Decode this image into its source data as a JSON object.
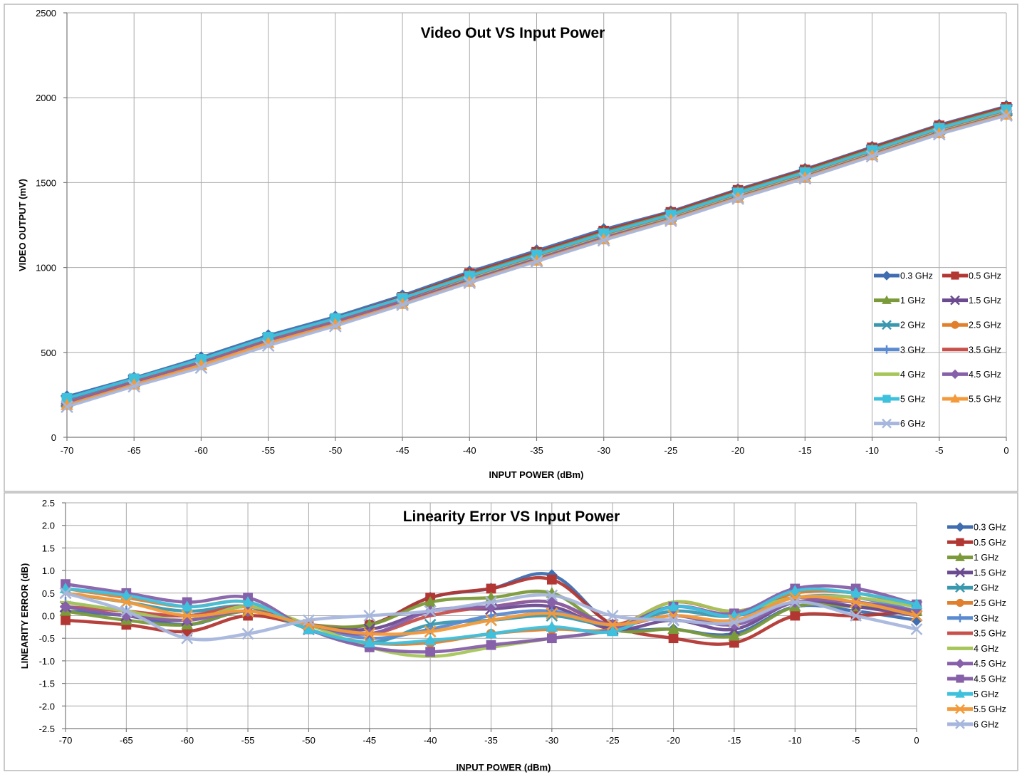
{
  "colors": {
    "0.3 GHz": "#3f6db0",
    "0.5 GHz": "#b23733",
    "1 GHz": "#7b9a3a",
    "1.5 GHz": "#6b4a8f",
    "2 GHz": "#3a98ae",
    "2.5 GHz": "#e07f2c",
    "3 GHz": "#5a8ad0",
    "3.5 GHz": "#c8504b",
    "4 GHz": "#a6c65a",
    "4.5 GHz": "#8660a8",
    "5 GHz": "#3fc0dc",
    "5.5 GHz": "#f39a3a",
    "6 GHz": "#a6b6dc"
  },
  "chart_data": [
    {
      "type": "line",
      "title": "Video Out VS Input Power",
      "xlabel": "INPUT POWER (dBm)",
      "ylabel": "VIDEO OUTPUT (mV)",
      "xlim": [
        -70,
        0
      ],
      "ylim": [
        0,
        2500
      ],
      "x_ticks": [
        "-70",
        "-65",
        "-60",
        "-55",
        "-50",
        "-45",
        "-40",
        "-35",
        "-30",
        "-25",
        "-20",
        "-15",
        "-10",
        "-5",
        "0"
      ],
      "y_ticks": [
        "0",
        "500",
        "1000",
        "1500",
        "2000",
        "2500"
      ],
      "grid": true,
      "legend_position": "right, two columns",
      "x": [
        -70,
        -65,
        -60,
        -55,
        -50,
        -45,
        -40,
        -35,
        -30,
        -25,
        -20,
        -15,
        -10,
        -5,
        0
      ],
      "series": [
        {
          "name": "0.3 GHz",
          "marker": "diamond",
          "values": [
            240,
            350,
            470,
            600,
            710,
            835,
            975,
            1100,
            1225,
            1330,
            1460,
            1580,
            1710,
            1840,
            1950
          ]
        },
        {
          "name": "0.5 GHz",
          "marker": "square",
          "values": [
            225,
            345,
            460,
            590,
            700,
            825,
            965,
            1090,
            1215,
            1325,
            1455,
            1575,
            1705,
            1835,
            1945
          ]
        },
        {
          "name": "1 GHz",
          "marker": "triangle",
          "values": [
            220,
            340,
            455,
            585,
            695,
            820,
            955,
            1080,
            1205,
            1315,
            1445,
            1565,
            1695,
            1825,
            1935
          ]
        },
        {
          "name": "1.5 GHz",
          "marker": "x",
          "values": [
            215,
            335,
            450,
            580,
            690,
            815,
            950,
            1075,
            1200,
            1310,
            1440,
            1560,
            1690,
            1820,
            1930
          ]
        },
        {
          "name": "2 GHz",
          "marker": "x",
          "values": [
            210,
            330,
            450,
            580,
            690,
            810,
            945,
            1070,
            1195,
            1305,
            1435,
            1555,
            1685,
            1815,
            1925
          ]
        },
        {
          "name": "2.5 GHz",
          "marker": "circle",
          "values": [
            205,
            325,
            440,
            570,
            680,
            805,
            940,
            1065,
            1190,
            1300,
            1430,
            1555,
            1685,
            1815,
            1930
          ]
        },
        {
          "name": "3 GHz",
          "marker": "plus",
          "values": [
            210,
            330,
            445,
            575,
            685,
            805,
            940,
            1065,
            1190,
            1300,
            1430,
            1550,
            1680,
            1810,
            1920
          ]
        },
        {
          "name": "3.5 GHz",
          "marker": "dash",
          "values": [
            205,
            325,
            440,
            570,
            680,
            800,
            935,
            1060,
            1185,
            1295,
            1425,
            1545,
            1675,
            1805,
            1915
          ]
        },
        {
          "name": "4 GHz",
          "marker": "dash",
          "values": [
            200,
            320,
            435,
            565,
            675,
            795,
            930,
            1055,
            1180,
            1290,
            1420,
            1540,
            1670,
            1800,
            1910
          ]
        },
        {
          "name": "4.5 GHz",
          "marker": "diamond",
          "values": [
            200,
            320,
            435,
            565,
            675,
            795,
            925,
            1050,
            1175,
            1285,
            1415,
            1535,
            1665,
            1795,
            1905
          ]
        },
        {
          "name": "5 GHz",
          "marker": "square",
          "values": [
            230,
            345,
            460,
            590,
            700,
            820,
            950,
            1075,
            1200,
            1310,
            1440,
            1560,
            1690,
            1820,
            1930
          ]
        },
        {
          "name": "5.5 GHz",
          "marker": "triangle",
          "values": [
            190,
            310,
            425,
            555,
            665,
            785,
            915,
            1040,
            1165,
            1280,
            1410,
            1530,
            1660,
            1790,
            1900
          ]
        },
        {
          "name": "6 GHz",
          "marker": "x",
          "values": [
            180,
            300,
            410,
            540,
            655,
            780,
            910,
            1035,
            1160,
            1275,
            1405,
            1525,
            1655,
            1785,
            1895
          ]
        }
      ]
    },
    {
      "type": "line",
      "title": "Linearity Error VS Input Power",
      "xlabel": "INPUT POWER (dBm)",
      "ylabel": "LINEARITY ERROR (dB)",
      "xlim": [
        -70,
        0
      ],
      "ylim": [
        -2.5,
        2.5
      ],
      "x_ticks": [
        "-70",
        "-65",
        "-60",
        "-55",
        "-50",
        "-45",
        "-40",
        "-35",
        "-30",
        "-25",
        "-20",
        "-15",
        "-10",
        "-5",
        "0"
      ],
      "y_ticks": [
        "-2.5",
        "-2.0",
        "-1.5",
        "-1.0",
        "-0.5",
        "0.0",
        "0.5",
        "1.0",
        "1.5",
        "2.0",
        "2.5"
      ],
      "grid": true,
      "legend_position": "right",
      "x": [
        -70,
        -65,
        -60,
        -55,
        -50,
        -45,
        -40,
        -35,
        -30,
        -25,
        -20,
        -15,
        -10,
        -5,
        0
      ],
      "series": [
        {
          "name": "0.3 GHz",
          "marker": "diamond",
          "values": [
            0.1,
            0.0,
            -0.2,
            0.1,
            -0.2,
            -0.2,
            0.4,
            0.6,
            0.9,
            -0.2,
            -0.3,
            -0.4,
            0.2,
            0.1,
            -0.1
          ]
        },
        {
          "name": "0.5 GHz",
          "marker": "square",
          "values": [
            -0.1,
            -0.2,
            -0.35,
            0.0,
            -0.2,
            -0.2,
            0.4,
            0.6,
            0.8,
            -0.2,
            -0.5,
            -0.6,
            0.0,
            0.0,
            0.1
          ]
        },
        {
          "name": "1 GHz",
          "marker": "triangle",
          "values": [
            0.1,
            -0.1,
            -0.2,
            0.1,
            -0.2,
            -0.2,
            0.3,
            0.4,
            0.5,
            -0.3,
            -0.3,
            -0.45,
            0.2,
            0.2,
            0.1
          ]
        },
        {
          "name": "1.5 GHz",
          "marker": "x",
          "values": [
            0.2,
            0.0,
            -0.1,
            0.2,
            -0.2,
            -0.3,
            0.1,
            0.15,
            0.2,
            -0.3,
            -0.1,
            -0.3,
            0.3,
            0.2,
            0.0
          ]
        },
        {
          "name": "2 GHz",
          "marker": "x",
          "values": [
            0.5,
            0.3,
            0.1,
            0.2,
            -0.3,
            -0.6,
            -0.2,
            -0.1,
            0.0,
            -0.2,
            0.1,
            0.0,
            0.5,
            0.5,
            0.2
          ]
        },
        {
          "name": "2.5 GHz",
          "marker": "circle",
          "values": [
            0.6,
            0.4,
            0.2,
            0.3,
            -0.3,
            -0.6,
            -0.6,
            -0.4,
            -0.3,
            -0.3,
            0.2,
            0.0,
            0.5,
            0.5,
            0.2
          ]
        },
        {
          "name": "3 GHz",
          "marker": "plus",
          "values": [
            0.3,
            0.1,
            0.0,
            0.2,
            -0.2,
            -0.5,
            -0.3,
            0.0,
            0.1,
            -0.2,
            0.2,
            0.0,
            0.4,
            0.4,
            0.1
          ]
        },
        {
          "name": "3.5 GHz",
          "marker": "dash",
          "values": [
            0.2,
            0.1,
            0.0,
            0.2,
            -0.2,
            -0.4,
            0.0,
            0.2,
            0.3,
            -0.2,
            0.3,
            0.1,
            0.4,
            0.3,
            0.1
          ]
        },
        {
          "name": "4 GHz",
          "marker": "dash",
          "values": [
            0.3,
            0.1,
            -0.1,
            0.2,
            -0.2,
            -0.7,
            -0.9,
            -0.7,
            -0.5,
            -0.3,
            0.3,
            0.1,
            0.4,
            0.4,
            0.2
          ]
        },
        {
          "name": "4.5 GHz",
          "marker": "diamond",
          "values": [
            0.2,
            0.0,
            -0.1,
            0.1,
            -0.2,
            -0.4,
            0.1,
            0.2,
            0.3,
            -0.2,
            0.0,
            -0.2,
            0.3,
            0.3,
            0.1
          ]
        },
        {
          "name": "4.5 GHz",
          "marker": "square",
          "values": [
            0.7,
            0.5,
            0.3,
            0.4,
            -0.3,
            -0.7,
            -0.8,
            -0.65,
            -0.5,
            -0.3,
            0.2,
            0.05,
            0.6,
            0.6,
            0.25
          ]
        },
        {
          "name": "5 GHz",
          "marker": "triangle",
          "values": [
            0.6,
            0.45,
            0.2,
            0.3,
            -0.3,
            -0.6,
            -0.55,
            -0.4,
            -0.25,
            -0.35,
            0.2,
            0.0,
            0.55,
            0.5,
            0.25
          ]
        },
        {
          "name": "5.5 GHz",
          "marker": "x",
          "values": [
            0.5,
            0.3,
            0.0,
            0.1,
            -0.2,
            -0.4,
            -0.35,
            -0.1,
            0.05,
            -0.2,
            0.0,
            -0.1,
            0.4,
            0.3,
            0.0
          ]
        },
        {
          "name": "6 GHz",
          "marker": "x",
          "values": [
            0.5,
            0.1,
            -0.5,
            -0.4,
            -0.1,
            0.0,
            0.1,
            0.3,
            0.45,
            0.0,
            -0.1,
            -0.15,
            0.3,
            0.0,
            -0.3
          ]
        }
      ]
    }
  ]
}
